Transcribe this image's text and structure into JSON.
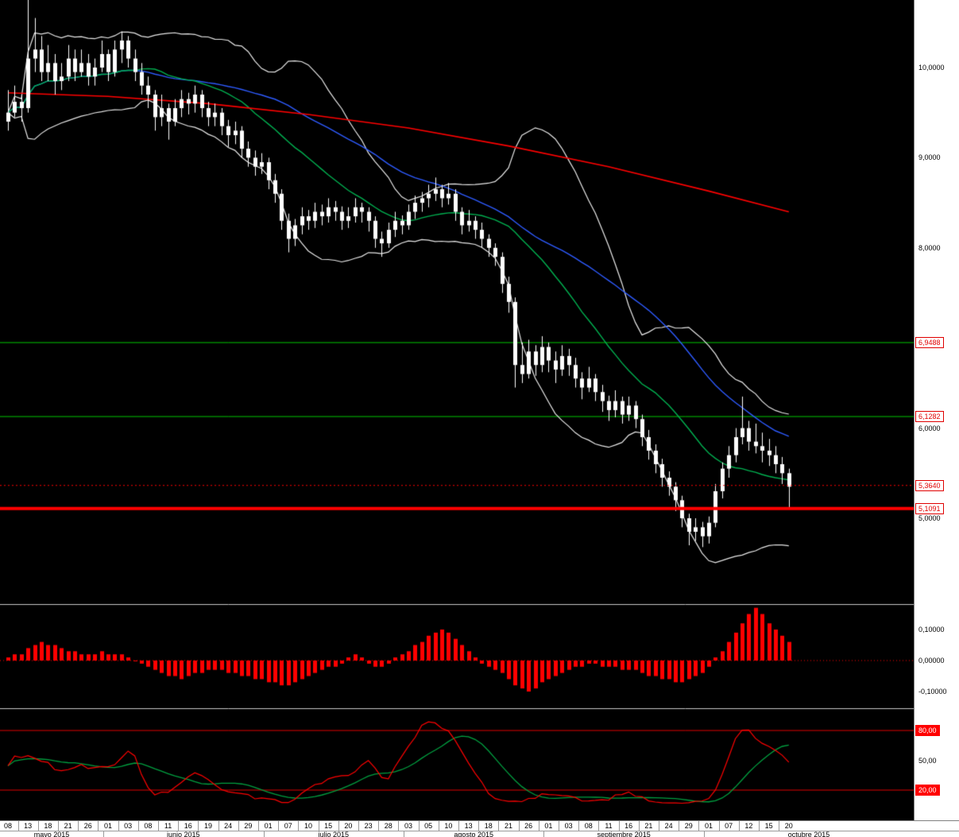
{
  "colors": {
    "background": "#000000",
    "candle": "#ffffff",
    "band": "#e8e8e8",
    "ma_short": "#00b050",
    "ma_mid": "#2e5bff",
    "ma_long": "#ff0000",
    "hline_green": "#00c800",
    "hline_red": "#ff0000",
    "hist": "#ff0000",
    "stoch_fast": "#ff0000",
    "stoch_slow": "#00a040",
    "stoch_line": "#e00000",
    "axis_bg": "#ffffff",
    "axis_text": "#000000",
    "divider": "#c8c8c8"
  },
  "chart_data": {
    "type": "candlestick",
    "title": "",
    "price_panel": {
      "ylim": [
        4.05,
        10.75
      ],
      "y_ticks": [
        {
          "value": 10.0,
          "label": "10,0000"
        },
        {
          "value": 9.0,
          "label": "9,0000"
        },
        {
          "value": 8.0,
          "label": "8,0000"
        },
        {
          "value": 6.0,
          "label": "6,0000"
        },
        {
          "value": 5.0,
          "label": "5,0000"
        }
      ],
      "hlines": [
        {
          "value": 6.9488,
          "label": "6,9488",
          "color": "#00c800",
          "style": "solid",
          "width": 1,
          "front": false
        },
        {
          "value": 6.1282,
          "label": "6,1282",
          "color": "#00c800",
          "style": "solid",
          "width": 1,
          "front": false
        },
        {
          "value": 5.364,
          "label": "5,3640",
          "color": "#ff0000",
          "style": "dotted",
          "width": 1,
          "front": true
        },
        {
          "value": 5.1091,
          "label": "5,1091",
          "color": "#ff0000",
          "style": "solid",
          "width": 4,
          "front": true
        }
      ],
      "long_ma_anchors": [
        [
          0,
          9.72
        ],
        [
          15,
          9.68
        ],
        [
          30,
          9.6
        ],
        [
          45,
          9.48
        ],
        [
          60,
          9.33
        ],
        [
          75,
          9.13
        ],
        [
          90,
          8.9
        ],
        [
          105,
          8.63
        ],
        [
          117,
          8.4
        ]
      ],
      "overlays": {
        "bollinger": {
          "period": 20,
          "mult": 2
        },
        "sma_short_period": 20,
        "sma_mid_period": 40
      },
      "candles": [
        [
          9.4,
          9.75,
          9.3,
          9.5
        ],
        [
          9.5,
          9.8,
          9.45,
          9.62
        ],
        [
          9.62,
          9.7,
          9.4,
          9.55
        ],
        [
          9.55,
          10.9,
          9.5,
          10.1
        ],
        [
          10.1,
          10.55,
          9.95,
          10.2
        ],
        [
          10.2,
          10.35,
          9.85,
          9.95
        ],
        [
          9.95,
          10.25,
          9.85,
          10.05
        ],
        [
          10.05,
          10.15,
          9.7,
          9.85
        ],
        [
          9.85,
          10.05,
          9.75,
          9.9
        ],
        [
          9.9,
          10.25,
          9.85,
          10.1
        ],
        [
          10.1,
          10.2,
          9.85,
          9.95
        ],
        [
          9.95,
          10.2,
          9.9,
          10.05
        ],
        [
          10.05,
          10.15,
          9.8,
          9.9
        ],
        [
          9.9,
          10.1,
          9.8,
          10.0
        ],
        [
          10.0,
          10.3,
          9.95,
          10.15
        ],
        [
          10.15,
          10.2,
          9.85,
          9.95
        ],
        [
          9.95,
          10.3,
          9.9,
          10.2
        ],
        [
          10.2,
          10.4,
          10.05,
          10.3
        ],
        [
          10.3,
          10.35,
          10.0,
          10.1
        ],
        [
          10.1,
          10.2,
          9.85,
          9.95
        ],
        [
          9.95,
          10.05,
          9.7,
          9.8
        ],
        [
          9.8,
          9.9,
          9.55,
          9.7
        ],
        [
          9.7,
          9.75,
          9.3,
          9.45
        ],
        [
          9.45,
          9.7,
          9.35,
          9.55
        ],
        [
          9.55,
          9.6,
          9.2,
          9.4
        ],
        [
          9.4,
          9.65,
          9.35,
          9.55
        ],
        [
          9.55,
          9.75,
          9.45,
          9.65
        ],
        [
          9.65,
          9.72,
          9.48,
          9.6
        ],
        [
          9.6,
          9.8,
          9.5,
          9.7
        ],
        [
          9.7,
          9.75,
          9.45,
          9.55
        ],
        [
          9.55,
          9.62,
          9.35,
          9.45
        ],
        [
          9.45,
          9.6,
          9.35,
          9.5
        ],
        [
          9.5,
          9.55,
          9.25,
          9.35
        ],
        [
          9.35,
          9.42,
          9.12,
          9.25
        ],
        [
          9.25,
          9.4,
          9.15,
          9.3
        ],
        [
          9.3,
          9.35,
          9.0,
          9.1
        ],
        [
          9.1,
          9.18,
          8.9,
          9.0
        ],
        [
          9.0,
          9.08,
          8.8,
          8.9
        ],
        [
          8.9,
          9.05,
          8.82,
          8.95
        ],
        [
          8.95,
          9.0,
          8.65,
          8.75
        ],
        [
          8.75,
          8.82,
          8.5,
          8.6
        ],
        [
          8.6,
          8.65,
          8.2,
          8.3
        ],
        [
          8.3,
          8.38,
          7.95,
          8.1
        ],
        [
          8.1,
          8.32,
          8.02,
          8.25
        ],
        [
          8.25,
          8.45,
          8.15,
          8.35
        ],
        [
          8.35,
          8.42,
          8.2,
          8.3
        ],
        [
          8.3,
          8.5,
          8.22,
          8.4
        ],
        [
          8.4,
          8.48,
          8.25,
          8.35
        ],
        [
          8.35,
          8.55,
          8.28,
          8.45
        ],
        [
          8.45,
          8.52,
          8.3,
          8.4
        ],
        [
          8.4,
          8.46,
          8.2,
          8.3
        ],
        [
          8.3,
          8.45,
          8.22,
          8.35
        ],
        [
          8.35,
          8.55,
          8.28,
          8.45
        ],
        [
          8.45,
          8.5,
          8.28,
          8.4
        ],
        [
          8.4,
          8.45,
          8.18,
          8.3
        ],
        [
          8.3,
          8.35,
          8.0,
          8.1
        ],
        [
          8.1,
          8.18,
          7.9,
          8.05
        ],
        [
          8.05,
          8.28,
          8.0,
          8.2
        ],
        [
          8.2,
          8.4,
          8.12,
          8.3
        ],
        [
          8.3,
          8.36,
          8.15,
          8.25
        ],
        [
          8.25,
          8.48,
          8.2,
          8.4
        ],
        [
          8.4,
          8.58,
          8.32,
          8.5
        ],
        [
          8.5,
          8.62,
          8.4,
          8.55
        ],
        [
          8.55,
          8.7,
          8.45,
          8.6
        ],
        [
          8.6,
          8.78,
          8.52,
          8.65
        ],
        [
          8.65,
          8.7,
          8.45,
          8.55
        ],
        [
          8.55,
          8.72,
          8.48,
          8.6
        ],
        [
          8.6,
          8.65,
          8.3,
          8.4
        ],
        [
          8.4,
          8.45,
          8.15,
          8.25
        ],
        [
          8.25,
          8.42,
          8.18,
          8.3
        ],
        [
          8.3,
          8.35,
          8.1,
          8.2
        ],
        [
          8.2,
          8.28,
          8.0,
          8.1
        ],
        [
          8.1,
          8.15,
          7.9,
          8.0
        ],
        [
          8.0,
          8.05,
          7.8,
          7.9
        ],
        [
          7.9,
          7.95,
          7.5,
          7.6
        ],
        [
          7.6,
          7.68,
          7.28,
          7.4
        ],
        [
          7.4,
          7.45,
          6.45,
          6.7
        ],
        [
          6.7,
          6.95,
          6.5,
          6.6
        ],
        [
          6.6,
          6.98,
          6.55,
          6.85
        ],
        [
          6.85,
          6.92,
          6.58,
          6.7
        ],
        [
          6.7,
          7.02,
          6.62,
          6.9
        ],
        [
          6.9,
          6.95,
          6.62,
          6.75
        ],
        [
          6.75,
          6.85,
          6.5,
          6.65
        ],
        [
          6.65,
          6.92,
          6.58,
          6.8
        ],
        [
          6.8,
          6.88,
          6.58,
          6.7
        ],
        [
          6.7,
          6.78,
          6.45,
          6.55
        ],
        [
          6.55,
          6.62,
          6.32,
          6.45
        ],
        [
          6.45,
          6.68,
          6.4,
          6.55
        ],
        [
          6.55,
          6.6,
          6.3,
          6.4
        ],
        [
          6.4,
          6.48,
          6.18,
          6.3
        ],
        [
          6.3,
          6.36,
          6.08,
          6.2
        ],
        [
          6.2,
          6.42,
          6.12,
          6.3
        ],
        [
          6.3,
          6.35,
          6.05,
          6.15
        ],
        [
          6.15,
          6.35,
          6.08,
          6.25
        ],
        [
          6.25,
          6.3,
          6.0,
          6.1
        ],
        [
          6.1,
          6.15,
          5.8,
          5.9
        ],
        [
          5.9,
          5.98,
          5.65,
          5.75
        ],
        [
          5.75,
          5.82,
          5.5,
          5.6
        ],
        [
          5.6,
          5.66,
          5.35,
          5.45
        ],
        [
          5.45,
          5.52,
          5.25,
          5.35
        ],
        [
          5.35,
          5.4,
          5.08,
          5.2
        ],
        [
          5.2,
          5.25,
          4.9,
          5.0
        ],
        [
          5.0,
          5.05,
          4.7,
          4.85
        ],
        [
          4.85,
          5.0,
          4.75,
          4.9
        ],
        [
          4.9,
          4.96,
          4.68,
          4.8
        ],
        [
          4.8,
          5.02,
          4.72,
          4.95
        ],
        [
          4.95,
          5.38,
          4.9,
          5.3
        ],
        [
          5.3,
          5.62,
          5.22,
          5.55
        ],
        [
          5.55,
          5.8,
          5.45,
          5.7
        ],
        [
          5.7,
          6.0,
          5.62,
          5.9
        ],
        [
          5.9,
          6.35,
          5.82,
          6.0
        ],
        [
          6.0,
          6.08,
          5.75,
          5.85
        ],
        [
          5.85,
          6.05,
          5.72,
          5.8
        ],
        [
          5.8,
          5.95,
          5.62,
          5.75
        ],
        [
          5.75,
          5.88,
          5.58,
          5.7
        ],
        [
          5.7,
          5.8,
          5.5,
          5.6
        ],
        [
          5.6,
          5.68,
          5.38,
          5.5
        ],
        [
          5.5,
          5.55,
          5.12,
          5.35
        ]
      ]
    },
    "macd_panel": {
      "ylim": [
        -0.155,
        0.175
      ],
      "y_ticks": [
        {
          "value": 0.1,
          "label": "0,10000"
        },
        {
          "value": 0.0,
          "label": "0,00000"
        },
        {
          "value": -0.1,
          "label": "-0,10000"
        }
      ],
      "histogram": [
        0.01,
        0.02,
        0.02,
        0.04,
        0.05,
        0.06,
        0.05,
        0.05,
        0.04,
        0.03,
        0.03,
        0.02,
        0.02,
        0.02,
        0.03,
        0.02,
        0.02,
        0.02,
        0.01,
        0.0,
        -0.01,
        -0.02,
        -0.03,
        -0.04,
        -0.05,
        -0.05,
        -0.06,
        -0.05,
        -0.04,
        -0.04,
        -0.03,
        -0.03,
        -0.03,
        -0.04,
        -0.04,
        -0.05,
        -0.05,
        -0.06,
        -0.06,
        -0.07,
        -0.07,
        -0.08,
        -0.08,
        -0.07,
        -0.06,
        -0.05,
        -0.04,
        -0.03,
        -0.02,
        -0.02,
        -0.01,
        0.01,
        0.02,
        0.01,
        -0.01,
        -0.02,
        -0.02,
        -0.01,
        0.01,
        0.02,
        0.03,
        0.05,
        0.06,
        0.08,
        0.09,
        0.1,
        0.09,
        0.07,
        0.05,
        0.03,
        0.01,
        -0.01,
        -0.02,
        -0.03,
        -0.04,
        -0.06,
        -0.08,
        -0.09,
        -0.1,
        -0.09,
        -0.07,
        -0.06,
        -0.05,
        -0.04,
        -0.03,
        -0.02,
        -0.02,
        -0.01,
        -0.01,
        -0.02,
        -0.02,
        -0.02,
        -0.03,
        -0.03,
        -0.03,
        -0.04,
        -0.05,
        -0.05,
        -0.06,
        -0.06,
        -0.07,
        -0.07,
        -0.06,
        -0.05,
        -0.04,
        -0.02,
        0.01,
        0.03,
        0.06,
        0.09,
        0.12,
        0.15,
        0.17,
        0.15,
        0.12,
        0.1,
        0.08,
        0.06
      ]
    },
    "stochastic_panel": {
      "ylim": [
        0,
        100
      ],
      "k_period": 14,
      "k_smooth": 3,
      "d_period": 10,
      "hlines": [
        {
          "value": 80,
          "label": "80,00"
        },
        {
          "value": 20,
          "label": "20,00"
        }
      ],
      "mid_label": {
        "value": 50,
        "label": "50,00"
      }
    },
    "x_axis": {
      "tick_step": 3,
      "day_labels": [
        "08",
        "13",
        "18",
        "21",
        "26",
        "01",
        "03",
        "08",
        "11",
        "16",
        "19",
        "24",
        "29",
        "01",
        "07",
        "10",
        "15",
        "20",
        "23",
        "28",
        "03",
        "05",
        "10",
        "13",
        "18",
        "21",
        "26",
        "01",
        "03",
        "08",
        "11",
        "16",
        "21",
        "24",
        "29",
        "01",
        "07",
        "12",
        "15",
        "20"
      ],
      "months": [
        {
          "label": "mayo 2015",
          "start_index": 0
        },
        {
          "label": "junio 2015",
          "start_index": 15
        },
        {
          "label": "julio 2015",
          "start_index": 39
        },
        {
          "label": "agosto 2015",
          "start_index": 60
        },
        {
          "label": "septiembre 2015",
          "start_index": 81
        },
        {
          "label": "octubre 2015",
          "start_index": 105
        }
      ]
    }
  }
}
